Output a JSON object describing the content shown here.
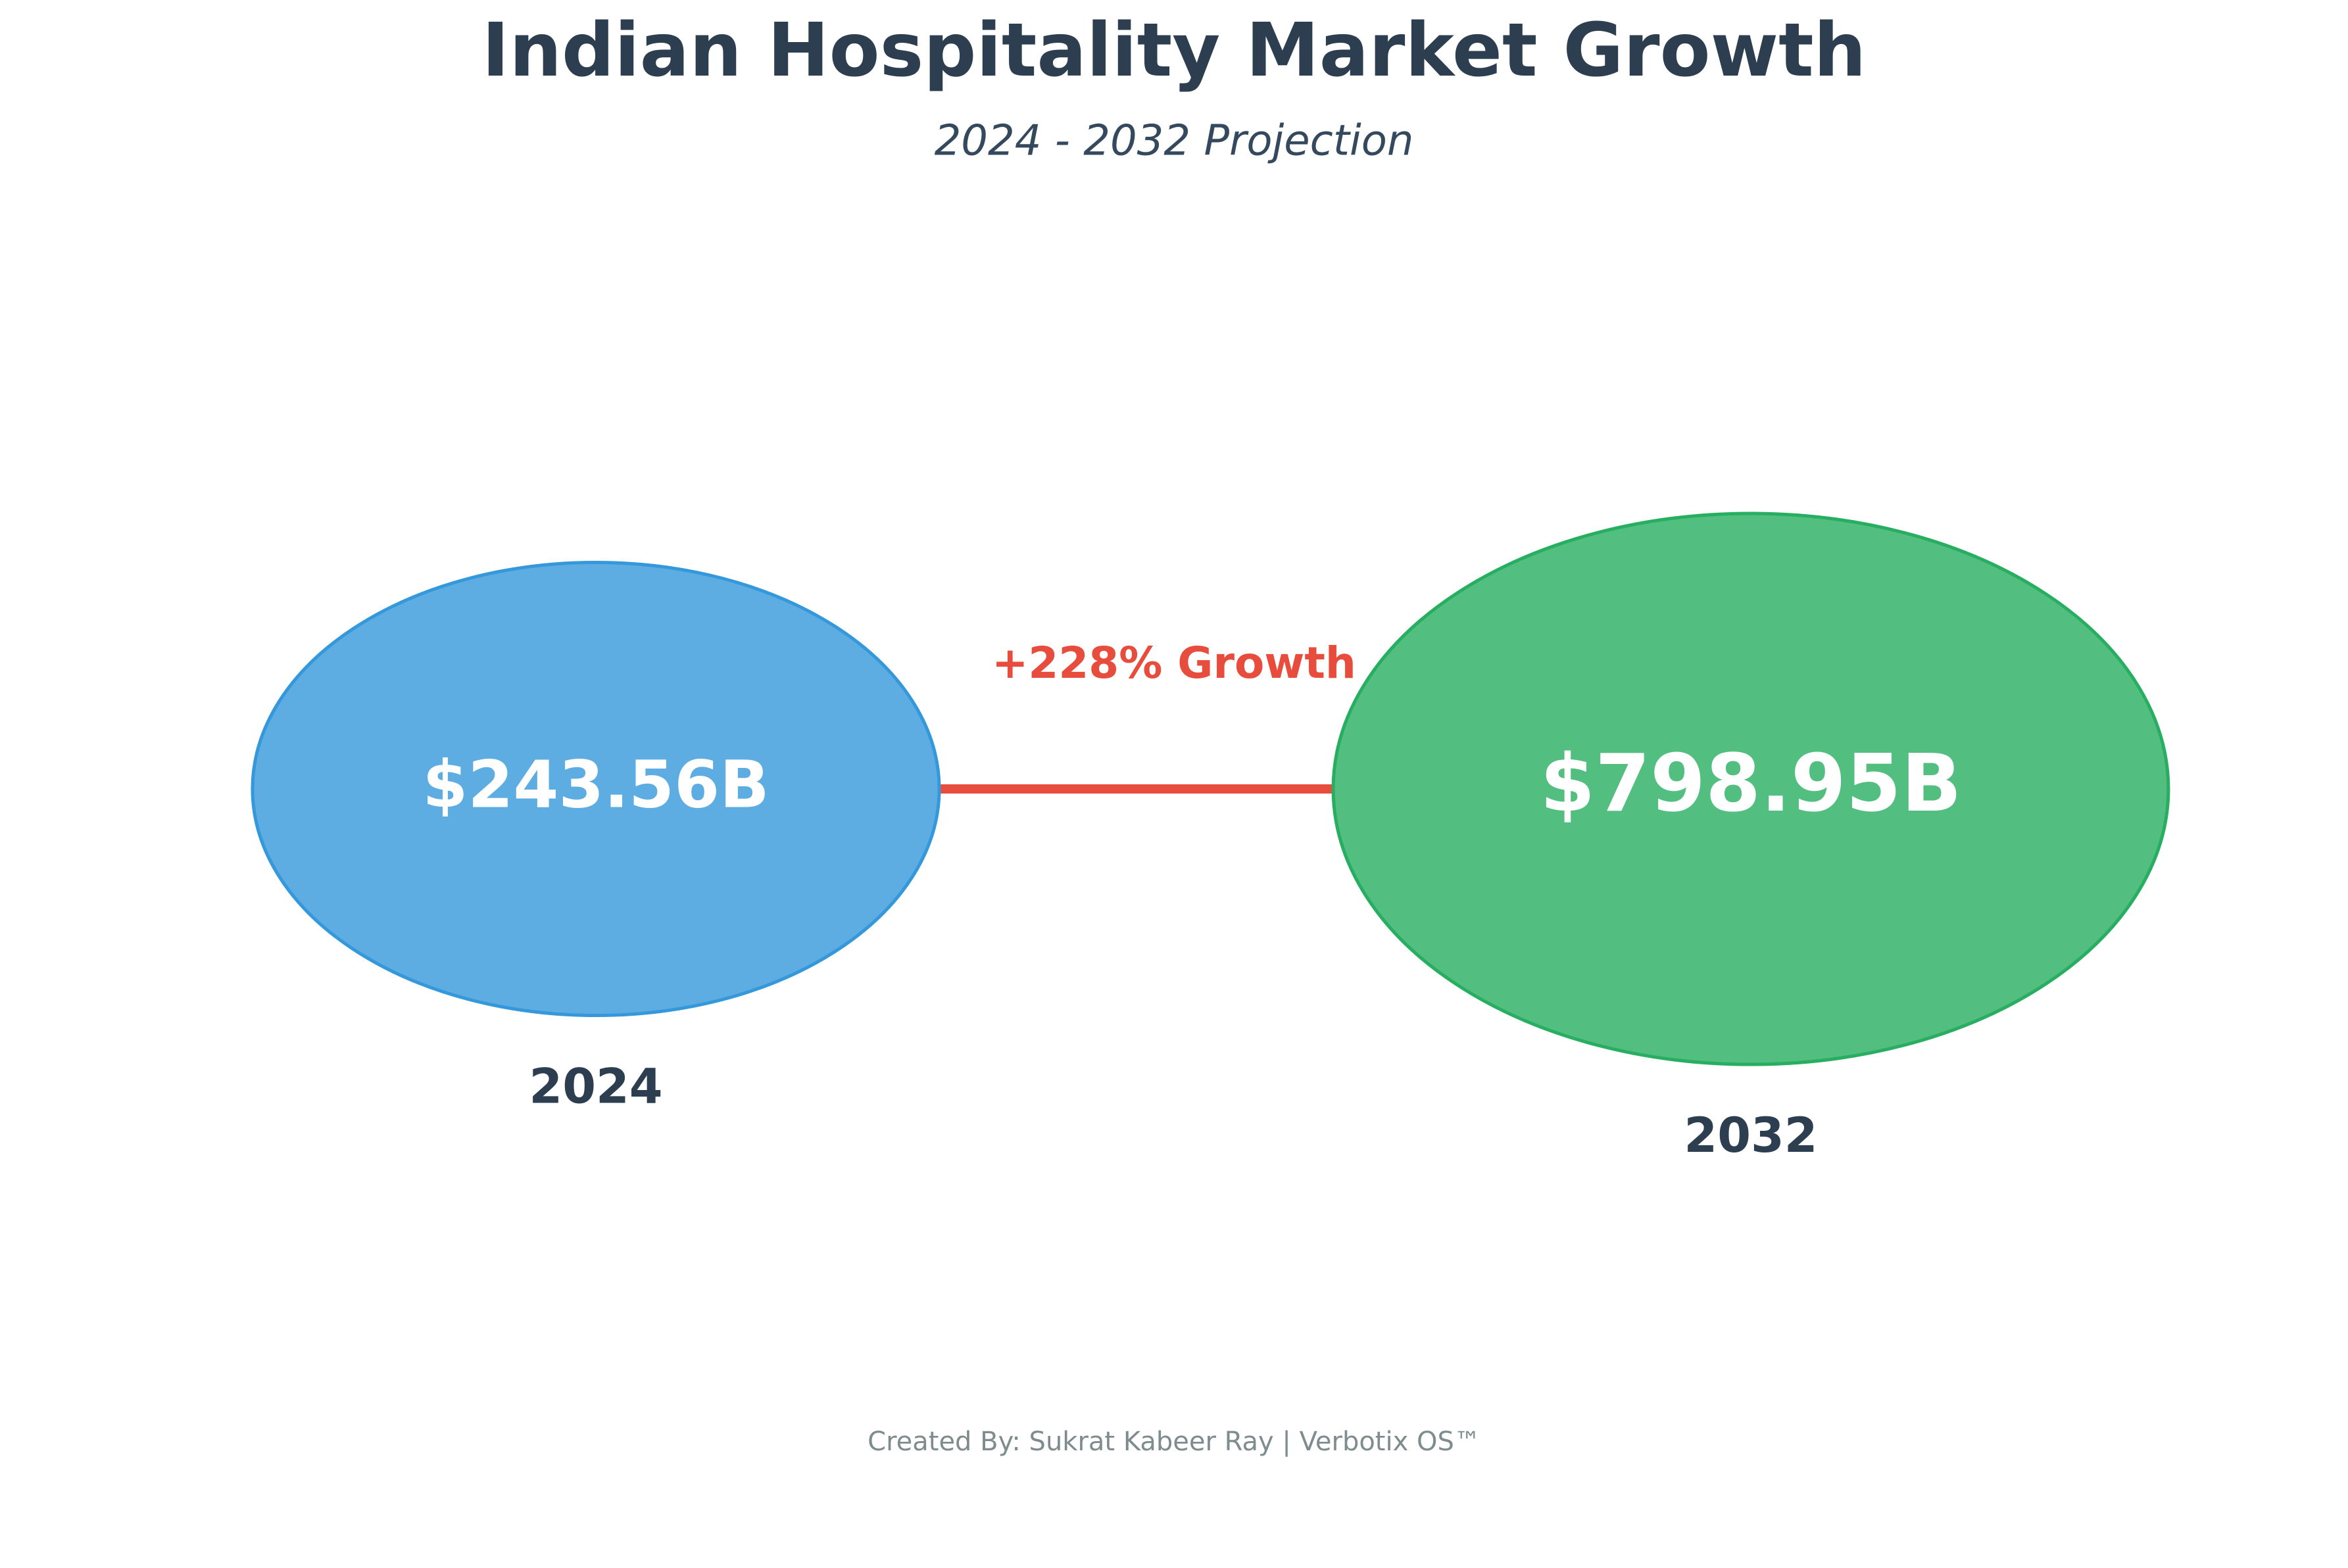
{
  "chart_data": {
    "type": "bubble",
    "title": "Indian Hospitality Market Growth",
    "subtitle": "2024 - 2032 Projection",
    "categories": [
      "2024",
      "2032"
    ],
    "values": [
      243.56,
      798.95
    ],
    "value_labels": [
      "$243.56B",
      "$798.95B"
    ],
    "colors": [
      "#5dade2",
      "#52be80"
    ],
    "annotation": "+228% Growth",
    "annotation_color": "#e74c3c",
    "footer": "Created By: Sukrat Kabeer Ray | Verbotix OS™"
  }
}
